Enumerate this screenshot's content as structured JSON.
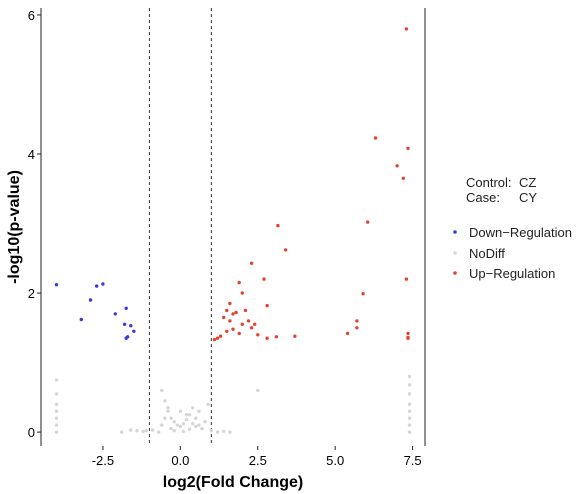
{
  "chart_data": {
    "type": "scatter",
    "title": "",
    "xlabel": "log2(Fold Change)",
    "ylabel": "-log10(p-value)",
    "xlim": [
      -4.5,
      7.9
    ],
    "ylim": [
      -0.2,
      6.1
    ],
    "xticks": [
      -2.5,
      0.0,
      2.5,
      5.0,
      7.5
    ],
    "xtick_labels": [
      "-2.5",
      "0.0",
      "2.5",
      "5.0",
      "7.5"
    ],
    "yticks": [
      0,
      2,
      4,
      6
    ],
    "ytick_labels": [
      "0",
      "2",
      "4",
      "6"
    ],
    "threshold_lines_x": [
      -1,
      1
    ],
    "grid": false,
    "legend_position": "right",
    "info": {
      "control_label": "Control:",
      "control_value": "CZ",
      "case_label": "Case:",
      "case_value": "CY"
    },
    "series": [
      {
        "name": "Down−Regulation",
        "color": "#3b3bd9",
        "x": [
          -4.0,
          -3.2,
          -2.9,
          -2.7,
          -2.5,
          -2.1,
          -1.8,
          -1.75,
          -1.7,
          -1.6,
          -1.5,
          -1.75
        ],
        "y": [
          2.12,
          1.62,
          1.9,
          2.1,
          2.13,
          1.7,
          1.55,
          1.35,
          1.37,
          1.53,
          1.45,
          1.78
        ]
      },
      {
        "name": "NoDiff",
        "color": "#d6d6d6",
        "x": [
          -4.0,
          -4.0,
          -4.0,
          -4.0,
          -4.0,
          -4.0,
          -4.0,
          -1.9,
          -1.6,
          -1.4,
          -1.2,
          -1.1,
          -0.9,
          -0.7,
          -0.6,
          -0.5,
          -0.4,
          -0.3,
          -0.2,
          -0.1,
          0.0,
          0.1,
          0.2,
          0.3,
          0.4,
          0.5,
          0.6,
          0.7,
          0.8,
          0.9,
          -0.6,
          -0.5,
          -0.3,
          0.0,
          0.2,
          0.4,
          0.5,
          -0.2,
          0.1,
          0.3,
          -0.4,
          0.6,
          1.0,
          1.2,
          1.4,
          1.6,
          2.5,
          7.4,
          7.4,
          7.4,
          7.4,
          7.4,
          7.4,
          7.4,
          7.4
        ],
        "y": [
          0.0,
          0.1,
          0.2,
          0.3,
          0.4,
          0.55,
          0.75,
          0.0,
          0.03,
          0.02,
          0.01,
          0.02,
          0.03,
          0.0,
          0.6,
          0.45,
          0.3,
          0.2,
          0.15,
          0.1,
          0.08,
          0.12,
          0.18,
          0.25,
          0.35,
          0.2,
          0.1,
          0.05,
          0.15,
          0.4,
          0.1,
          0.2,
          0.05,
          0.3,
          0.25,
          0.12,
          0.08,
          0.02,
          0.01,
          0.04,
          0.35,
          0.3,
          0.02,
          0.0,
          0.01,
          0.0,
          0.6,
          0.0,
          0.1,
          0.2,
          0.3,
          0.4,
          0.55,
          0.68,
          0.8
        ]
      },
      {
        "name": "Up−Regulation",
        "color": "#e8412f",
        "x": [
          7.3,
          6.3,
          7.35,
          7.0,
          7.2,
          3.15,
          6.05,
          3.4,
          2.3,
          1.9,
          2.0,
          2.7,
          2.8,
          1.6,
          1.5,
          1.7,
          1.8,
          2.1,
          2.2,
          2.4,
          1.4,
          1.3,
          1.2,
          1.1,
          1.5,
          1.6,
          1.7,
          1.9,
          2.0,
          2.3,
          2.5,
          2.8,
          3.1,
          3.7,
          5.4,
          5.7,
          5.7,
          5.9,
          7.3,
          7.35,
          7.35,
          7.35
        ],
        "y": [
          5.8,
          4.23,
          4.08,
          3.83,
          3.65,
          2.97,
          3.02,
          2.62,
          2.43,
          2.15,
          2.0,
          2.2,
          1.82,
          1.85,
          1.75,
          1.7,
          1.72,
          1.75,
          1.6,
          1.55,
          1.65,
          1.38,
          1.35,
          1.33,
          1.45,
          1.6,
          1.48,
          1.42,
          1.55,
          1.5,
          1.4,
          1.35,
          1.37,
          1.38,
          1.42,
          1.5,
          1.6,
          1.99,
          2.2,
          1.42,
          1.36,
          1.35
        ]
      }
    ]
  },
  "colors": {
    "down": "#3b3bd9",
    "nodiff": "#d6d6d6",
    "up": "#e8412f",
    "axis": "#222222",
    "threshold": "#333333"
  }
}
